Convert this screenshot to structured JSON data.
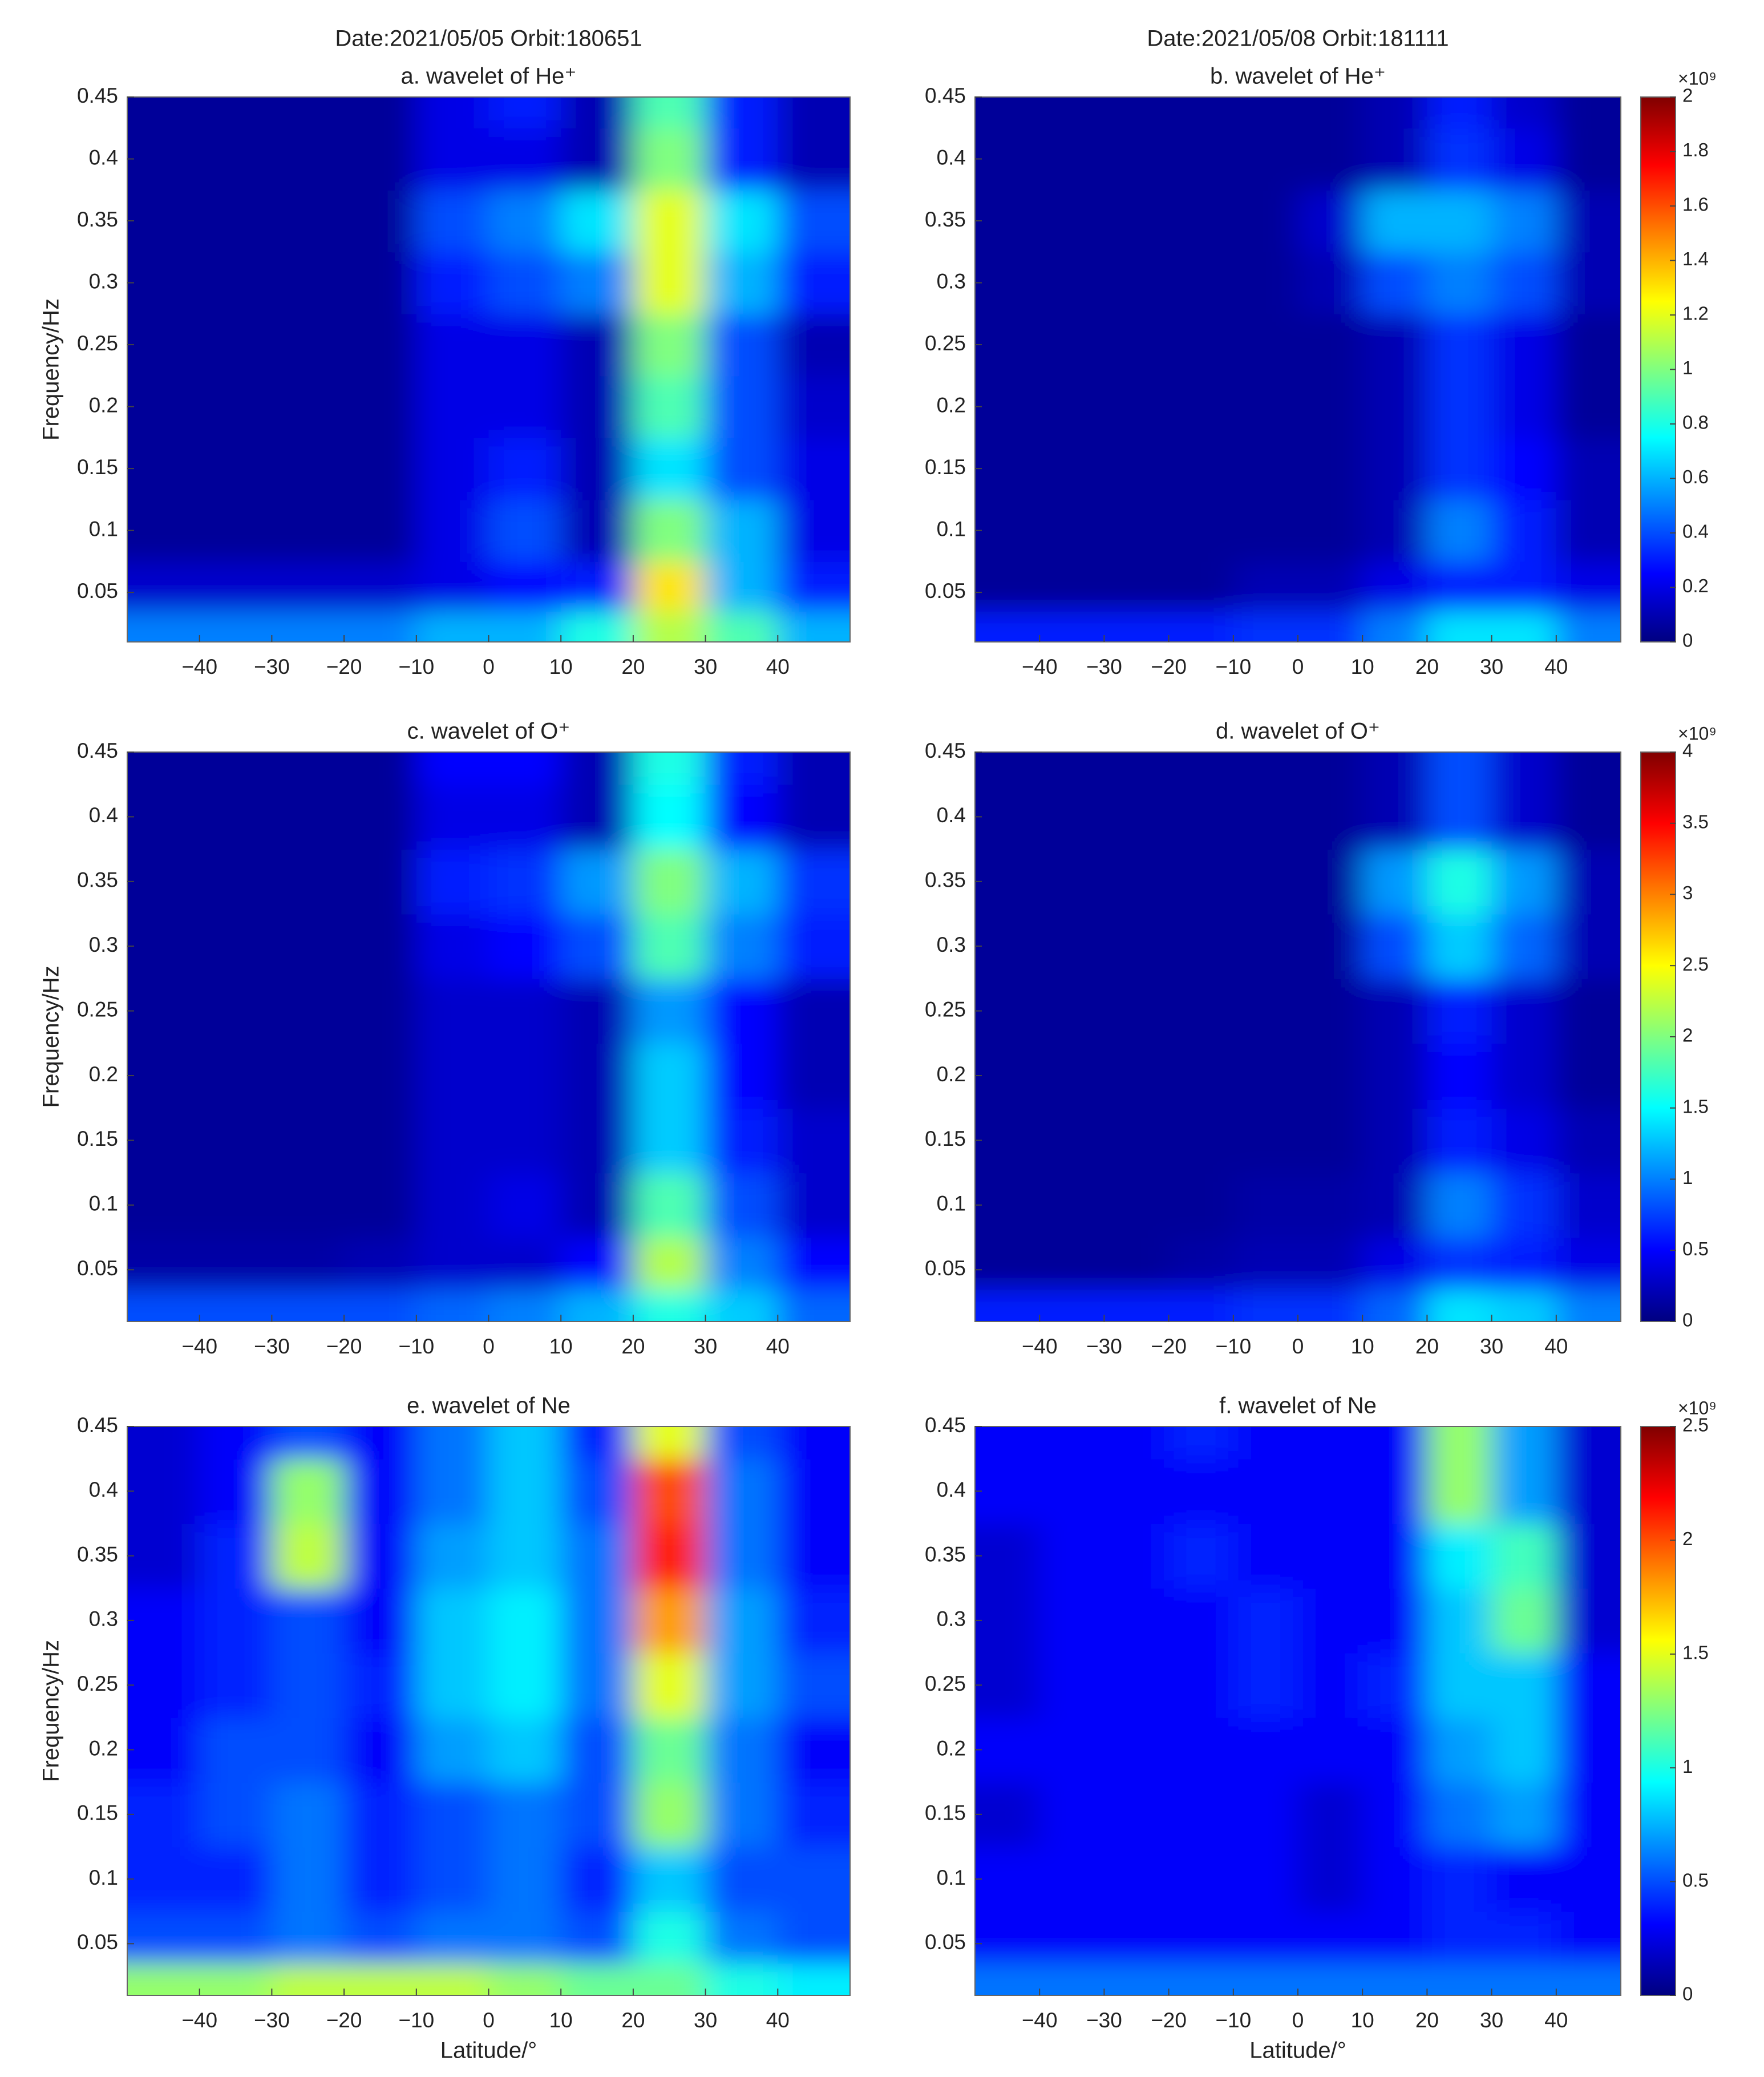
{
  "chart_data": [
    {
      "type": "heatmap",
      "header": "Date:2021/05/05  Orbit:180651",
      "title": "a.  wavelet of He⁺",
      "ylabel": "Frequency/Hz",
      "x": [
        -45,
        -35,
        -25,
        -15,
        -5,
        5,
        15,
        25,
        35,
        45
      ],
      "y": [
        0.02,
        0.05,
        0.1,
        0.15,
        0.2,
        0.25,
        0.3,
        0.35,
        0.4,
        0.45
      ],
      "z": [
        [
          0.5,
          0.5,
          0.5,
          0.5,
          0.6,
          0.6,
          0.8,
          1.1,
          0.9,
          0.6
        ],
        [
          0.15,
          0.15,
          0.15,
          0.15,
          0.2,
          0.25,
          0.3,
          1.3,
          0.6,
          0.3
        ],
        [
          0.05,
          0.05,
          0.05,
          0.05,
          0.2,
          0.4,
          0.1,
          1.0,
          0.6,
          0.2
        ],
        [
          0.05,
          0.05,
          0.05,
          0.05,
          0.2,
          0.3,
          0.1,
          0.7,
          0.4,
          0.2
        ],
        [
          0.05,
          0.05,
          0.05,
          0.05,
          0.2,
          0.2,
          0.1,
          0.9,
          0.4,
          0.15
        ],
        [
          0.05,
          0.05,
          0.05,
          0.05,
          0.2,
          0.2,
          0.1,
          1.0,
          0.4,
          0.1
        ],
        [
          0.05,
          0.05,
          0.05,
          0.05,
          0.3,
          0.4,
          0.5,
          1.2,
          0.6,
          0.3
        ],
        [
          0.05,
          0.05,
          0.05,
          0.05,
          0.4,
          0.5,
          0.7,
          1.2,
          0.7,
          0.4
        ],
        [
          0.05,
          0.05,
          0.05,
          0.05,
          0.2,
          0.2,
          0.1,
          1.0,
          0.3,
          0.1
        ],
        [
          0.05,
          0.05,
          0.05,
          0.05,
          0.2,
          0.3,
          0.1,
          0.9,
          0.3,
          0.1
        ]
      ],
      "zlim": [
        0,
        2
      ],
      "xlim": [
        -50,
        50
      ],
      "ylim": [
        0.01,
        0.45
      ],
      "xticks": [
        {
          "value": -40,
          "label": "−40"
        },
        {
          "value": -30,
          "label": "−30"
        },
        {
          "value": -20,
          "label": "−20"
        },
        {
          "value": -10,
          "label": "−10"
        },
        0,
        10,
        20,
        30,
        40
      ],
      "yticks": [
        0.05,
        0.1,
        0.15,
        0.2,
        0.25,
        0.3,
        0.35,
        0.4,
        0.45
      ]
    },
    {
      "type": "heatmap",
      "header": "Date:2021/05/08  Orbit:181111",
      "title": "b.  wavelet of He⁺",
      "x": [
        -45,
        -35,
        -25,
        -15,
        -5,
        5,
        15,
        25,
        35,
        45
      ],
      "y": [
        0.02,
        0.05,
        0.1,
        0.15,
        0.2,
        0.25,
        0.3,
        0.35,
        0.4,
        0.45
      ],
      "z": [
        [
          0.3,
          0.3,
          0.3,
          0.3,
          0.35,
          0.35,
          0.5,
          0.7,
          0.7,
          0.5
        ],
        [
          0.05,
          0.05,
          0.05,
          0.05,
          0.1,
          0.1,
          0.2,
          0.3,
          0.3,
          0.2
        ],
        [
          0.05,
          0.05,
          0.05,
          0.05,
          0.05,
          0.05,
          0.1,
          0.5,
          0.3,
          0.1
        ],
        [
          0.05,
          0.05,
          0.05,
          0.05,
          0.05,
          0.05,
          0.1,
          0.35,
          0.25,
          0.1
        ],
        [
          0.05,
          0.05,
          0.05,
          0.05,
          0.05,
          0.05,
          0.1,
          0.35,
          0.2,
          0.05
        ],
        [
          0.05,
          0.05,
          0.05,
          0.05,
          0.05,
          0.05,
          0.1,
          0.35,
          0.2,
          0.05
        ],
        [
          0.05,
          0.05,
          0.05,
          0.05,
          0.05,
          0.1,
          0.4,
          0.5,
          0.4,
          0.1
        ],
        [
          0.05,
          0.05,
          0.05,
          0.05,
          0.05,
          0.15,
          0.6,
          0.6,
          0.5,
          0.1
        ],
        [
          0.05,
          0.05,
          0.05,
          0.05,
          0.05,
          0.05,
          0.1,
          0.35,
          0.2,
          0.05
        ],
        [
          0.05,
          0.05,
          0.05,
          0.05,
          0.05,
          0.05,
          0.1,
          0.3,
          0.15,
          0.05
        ]
      ],
      "zlim": [
        0,
        2
      ],
      "zticks": [
        0,
        0.2,
        0.4,
        0.6,
        0.8,
        1,
        1.2,
        1.4,
        1.6,
        1.8,
        2
      ],
      "zlabel": "×10⁹",
      "xlim": [
        -50,
        50
      ],
      "ylim": [
        0.01,
        0.45
      ],
      "xticks": [
        {
          "value": -40,
          "label": "−40"
        },
        {
          "value": -30,
          "label": "−30"
        },
        {
          "value": -20,
          "label": "−20"
        },
        {
          "value": -10,
          "label": "−10"
        },
        0,
        10,
        20,
        30,
        40
      ],
      "yticks": [
        0.05,
        0.1,
        0.15,
        0.2,
        0.25,
        0.3,
        0.35,
        0.4,
        0.45
      ]
    },
    {
      "type": "heatmap",
      "title": "c.  wavelet of O⁺",
      "ylabel": "Frequency/Hz",
      "x": [
        -45,
        -35,
        -25,
        -15,
        -5,
        5,
        15,
        25,
        35,
        45
      ],
      "y": [
        0.02,
        0.05,
        0.1,
        0.15,
        0.2,
        0.25,
        0.3,
        0.35,
        0.4,
        0.45
      ],
      "z": [
        [
          0.8,
          0.8,
          0.8,
          0.8,
          0.9,
          1.0,
          1.2,
          1.6,
          1.3,
          0.9
        ],
        [
          0.15,
          0.15,
          0.15,
          0.2,
          0.3,
          0.3,
          0.5,
          2.2,
          1.0,
          0.5
        ],
        [
          0.1,
          0.1,
          0.1,
          0.1,
          0.3,
          0.4,
          0.2,
          1.8,
          0.8,
          0.3
        ],
        [
          0.1,
          0.1,
          0.1,
          0.1,
          0.3,
          0.3,
          0.2,
          1.3,
          0.6,
          0.3
        ],
        [
          0.1,
          0.1,
          0.1,
          0.1,
          0.3,
          0.3,
          0.2,
          1.3,
          0.5,
          0.2
        ],
        [
          0.1,
          0.1,
          0.1,
          0.1,
          0.3,
          0.3,
          0.2,
          1.1,
          0.5,
          0.2
        ],
        [
          0.1,
          0.1,
          0.1,
          0.1,
          0.4,
          0.5,
          0.8,
          1.8,
          1.0,
          0.6
        ],
        [
          0.1,
          0.1,
          0.1,
          0.1,
          0.6,
          0.7,
          1.1,
          2.0,
          1.2,
          0.7
        ],
        [
          0.1,
          0.1,
          0.1,
          0.1,
          0.4,
          0.4,
          0.2,
          1.5,
          0.5,
          0.2
        ],
        [
          0.1,
          0.1,
          0.1,
          0.1,
          0.5,
          0.5,
          0.2,
          1.6,
          0.6,
          0.2
        ]
      ],
      "zlim": [
        0,
        4
      ],
      "xlim": [
        -50,
        50
      ],
      "ylim": [
        0.01,
        0.45
      ],
      "xticks": [
        {
          "value": -40,
          "label": "−40"
        },
        {
          "value": -30,
          "label": "−30"
        },
        {
          "value": -20,
          "label": "−20"
        },
        {
          "value": -10,
          "label": "−10"
        },
        0,
        10,
        20,
        30,
        40
      ],
      "yticks": [
        0.05,
        0.1,
        0.15,
        0.2,
        0.25,
        0.3,
        0.35,
        0.4,
        0.45
      ]
    },
    {
      "type": "heatmap",
      "title": "d.  wavelet of O⁺",
      "x": [
        -45,
        -35,
        -25,
        -15,
        -5,
        5,
        15,
        25,
        35,
        45
      ],
      "y": [
        0.02,
        0.05,
        0.1,
        0.15,
        0.2,
        0.25,
        0.3,
        0.35,
        0.4,
        0.45
      ],
      "z": [
        [
          0.6,
          0.6,
          0.6,
          0.6,
          0.7,
          0.7,
          0.9,
          1.4,
          1.3,
          1.0
        ],
        [
          0.1,
          0.1,
          0.1,
          0.15,
          0.2,
          0.2,
          0.4,
          0.7,
          0.6,
          0.4
        ],
        [
          0.1,
          0.1,
          0.1,
          0.1,
          0.15,
          0.15,
          0.2,
          1.0,
          0.7,
          0.3
        ],
        [
          0.1,
          0.1,
          0.1,
          0.1,
          0.1,
          0.1,
          0.2,
          0.6,
          0.4,
          0.2
        ],
        [
          0.1,
          0.1,
          0.1,
          0.1,
          0.1,
          0.1,
          0.2,
          0.5,
          0.3,
          0.1
        ],
        [
          0.1,
          0.1,
          0.1,
          0.1,
          0.1,
          0.1,
          0.2,
          0.6,
          0.3,
          0.1
        ],
        [
          0.1,
          0.1,
          0.1,
          0.1,
          0.1,
          0.1,
          0.8,
          1.3,
          0.9,
          0.2
        ],
        [
          0.1,
          0.1,
          0.1,
          0.1,
          0.1,
          0.1,
          1.1,
          1.6,
          1.1,
          0.2
        ],
        [
          0.1,
          0.1,
          0.1,
          0.1,
          0.1,
          0.1,
          0.2,
          0.8,
          0.3,
          0.1
        ],
        [
          0.1,
          0.1,
          0.1,
          0.1,
          0.1,
          0.1,
          0.2,
          0.8,
          0.3,
          0.1
        ]
      ],
      "zlim": [
        0,
        4
      ],
      "zticks": [
        0,
        0.5,
        1,
        1.5,
        2,
        2.5,
        3,
        3.5,
        4
      ],
      "zlabel": "×10⁹",
      "xlim": [
        -50,
        50
      ],
      "ylim": [
        0.01,
        0.45
      ],
      "xticks": [
        {
          "value": -40,
          "label": "−40"
        },
        {
          "value": -30,
          "label": "−30"
        },
        {
          "value": -20,
          "label": "−20"
        },
        {
          "value": -10,
          "label": "−10"
        },
        0,
        10,
        20,
        30,
        40
      ],
      "yticks": [
        0.05,
        0.1,
        0.15,
        0.2,
        0.25,
        0.3,
        0.35,
        0.4,
        0.45
      ]
    },
    {
      "type": "heatmap",
      "title": "e.  wavelet of Ne",
      "ylabel": "Frequency/Hz",
      "xlabel": "Latitude/°",
      "x": [
        -45,
        -35,
        -25,
        -15,
        -5,
        5,
        15,
        25,
        35,
        45
      ],
      "y": [
        0.02,
        0.05,
        0.1,
        0.15,
        0.2,
        0.25,
        0.3,
        0.35,
        0.4,
        0.45
      ],
      "z": [
        [
          1.3,
          1.3,
          1.4,
          1.4,
          1.4,
          1.3,
          1.2,
          1.2,
          1.0,
          0.9
        ],
        [
          0.5,
          0.5,
          0.6,
          0.5,
          0.6,
          0.6,
          0.5,
          1.0,
          0.6,
          0.5
        ],
        [
          0.4,
          0.4,
          0.6,
          0.4,
          0.5,
          0.6,
          0.4,
          0.8,
          0.5,
          0.5
        ],
        [
          0.4,
          0.5,
          0.6,
          0.4,
          0.5,
          0.6,
          0.5,
          1.3,
          0.6,
          0.4
        ],
        [
          0.3,
          0.5,
          0.5,
          0.3,
          0.7,
          0.8,
          0.5,
          1.2,
          0.6,
          0.3
        ],
        [
          0.3,
          0.4,
          0.5,
          0.4,
          0.8,
          0.9,
          0.6,
          1.5,
          0.7,
          0.5
        ],
        [
          0.3,
          0.4,
          0.5,
          0.3,
          0.8,
          0.9,
          0.6,
          1.8,
          0.7,
          0.4
        ],
        [
          0.2,
          0.4,
          1.4,
          0.3,
          0.7,
          0.8,
          0.6,
          2.1,
          0.6,
          0.3
        ],
        [
          0.2,
          0.3,
          1.3,
          0.3,
          0.6,
          0.8,
          0.5,
          2.0,
          0.6,
          0.3
        ],
        [
          0.2,
          0.3,
          0.5,
          0.3,
          0.6,
          0.8,
          0.4,
          1.5,
          0.5,
          0.3
        ]
      ],
      "zlim": [
        0,
        2.5
      ],
      "xlim": [
        -50,
        50
      ],
      "ylim": [
        0.01,
        0.45
      ],
      "xticks": [
        {
          "value": -40,
          "label": "−40"
        },
        {
          "value": -30,
          "label": "−30"
        },
        {
          "value": -20,
          "label": "−20"
        },
        {
          "value": -10,
          "label": "−10"
        },
        0,
        10,
        20,
        30,
        40
      ],
      "yticks": [
        0.05,
        0.1,
        0.15,
        0.2,
        0.25,
        0.3,
        0.35,
        0.4,
        0.45
      ]
    },
    {
      "type": "heatmap",
      "title": "f.  wavelet of Ne",
      "xlabel": "Latitude/°",
      "x": [
        -45,
        -35,
        -25,
        -15,
        -5,
        5,
        15,
        25,
        35,
        45
      ],
      "y": [
        0.02,
        0.05,
        0.1,
        0.15,
        0.2,
        0.25,
        0.3,
        0.35,
        0.4,
        0.45
      ],
      "z": [
        [
          0.6,
          0.6,
          0.6,
          0.6,
          0.6,
          0.6,
          0.6,
          0.6,
          0.6,
          0.6
        ],
        [
          0.3,
          0.3,
          0.3,
          0.3,
          0.3,
          0.3,
          0.3,
          0.4,
          0.4,
          0.3
        ],
        [
          0.3,
          0.3,
          0.3,
          0.3,
          0.3,
          0.2,
          0.3,
          0.4,
          0.3,
          0.3
        ],
        [
          0.2,
          0.3,
          0.3,
          0.3,
          0.3,
          0.2,
          0.3,
          0.6,
          0.7,
          0.3
        ],
        [
          0.3,
          0.3,
          0.3,
          0.3,
          0.3,
          0.3,
          0.3,
          0.7,
          0.8,
          0.3
        ],
        [
          0.2,
          0.3,
          0.3,
          0.3,
          0.4,
          0.3,
          0.4,
          0.8,
          0.8,
          0.3
        ],
        [
          0.2,
          0.3,
          0.3,
          0.3,
          0.4,
          0.3,
          0.3,
          0.8,
          1.2,
          0.2
        ],
        [
          0.2,
          0.3,
          0.3,
          0.4,
          0.3,
          0.3,
          0.3,
          0.9,
          1.1,
          0.2
        ],
        [
          0.3,
          0.3,
          0.3,
          0.3,
          0.3,
          0.3,
          0.3,
          1.3,
          0.7,
          0.2
        ],
        [
          0.3,
          0.3,
          0.3,
          0.4,
          0.3,
          0.3,
          0.3,
          1.3,
          0.7,
          0.2
        ]
      ],
      "zlim": [
        0,
        2.5
      ],
      "zticks": [
        0,
        0.5,
        1,
        1.5,
        2,
        2.5
      ],
      "zlabel": "×10⁹",
      "xlim": [
        -50,
        50
      ],
      "ylim": [
        0.01,
        0.45
      ],
      "xticks": [
        {
          "value": -40,
          "label": "−40"
        },
        {
          "value": -30,
          "label": "−30"
        },
        {
          "value": -20,
          "label": "−20"
        },
        {
          "value": -10,
          "label": "−10"
        },
        0,
        10,
        20,
        30,
        40
      ],
      "yticks": [
        0.05,
        0.1,
        0.15,
        0.2,
        0.25,
        0.3,
        0.35,
        0.4,
        0.45
      ]
    }
  ]
}
